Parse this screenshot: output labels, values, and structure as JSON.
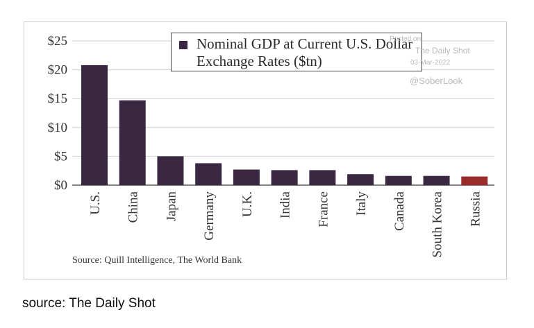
{
  "chart_data": {
    "type": "bar",
    "title": "Nominal GDP at Current U.S. Dollar Exchange Rates ($tn)",
    "legend_label": "Nominal GDP at Current U.S. Dollar Exchange Rates ($tn)",
    "legend_position": "top-right",
    "categories": [
      "U.S.",
      "China",
      "Japan",
      "Germany",
      "U.K.",
      "India",
      "France",
      "Italy",
      "Canada",
      "South Korea",
      "Russia"
    ],
    "values": [
      20.8,
      14.7,
      5.0,
      3.8,
      2.7,
      2.6,
      2.6,
      1.9,
      1.6,
      1.6,
      1.5
    ],
    "bar_colors": [
      "#3a2842",
      "#3a2842",
      "#3a2842",
      "#3a2842",
      "#3a2842",
      "#3a2842",
      "#3a2842",
      "#3a2842",
      "#3a2842",
      "#3a2842",
      "#9b2c2c"
    ],
    "ylim": [
      0,
      25
    ],
    "yticks": [
      0,
      5,
      10,
      15,
      20,
      25
    ],
    "ytick_labels": [
      "$0",
      "$5",
      "$10",
      "$15",
      "$20",
      "$25"
    ],
    "grid": true,
    "xlabel": "",
    "ylabel": ""
  },
  "watermark": {
    "line1": "Posted on",
    "line2": "The Daily Shot",
    "line3": "03-Mar-2022",
    "handle": "@SoberLook"
  },
  "source_note": "Source: Quill Intelligence, The World Bank",
  "caption": "source: The Daily Shot"
}
